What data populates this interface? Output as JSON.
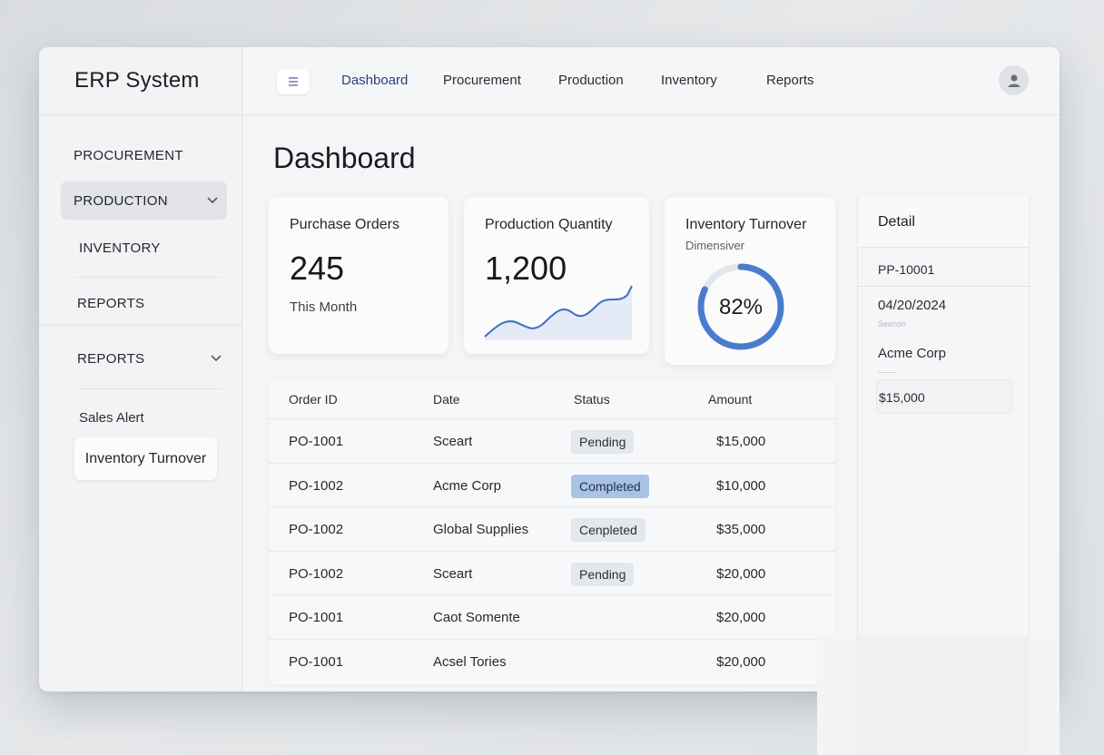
{
  "app": {
    "title": "ERP System"
  },
  "header": {
    "menu_icon": "hamburger-icon",
    "tabs": [
      {
        "label": "Dashboard",
        "active": true
      },
      {
        "label": "Procurement",
        "active": false
      },
      {
        "label": "Production",
        "active": false
      },
      {
        "label": "Inventory",
        "active": false
      },
      {
        "label": "Reports",
        "active": false
      }
    ],
    "avatar_icon": "user-icon"
  },
  "sidebar": {
    "items": [
      {
        "label": "PROCUREMENT"
      },
      {
        "label": "PRODUCTION",
        "active": true,
        "expanded": true
      },
      {
        "label": "INVENTORY"
      },
      {
        "label": "REPORTS"
      },
      {
        "label": "REPORTS",
        "expandable": true
      }
    ],
    "sub_label": "Sales Alert",
    "sub_card": "Inventory Turnover"
  },
  "main": {
    "page_title": "Dashboard",
    "cards": {
      "purchase": {
        "title": "Purchase Orders",
        "value": "245",
        "sub": "This Month"
      },
      "production": {
        "title": "Production Quantity",
        "value": "1,200"
      },
      "inventory": {
        "title": "Inventory Turnover",
        "sub": "Dimensiver",
        "percent_label": "82%",
        "percent": 82
      }
    },
    "table": {
      "headers": [
        "Order ID",
        "Date",
        "Status",
        "Amount"
      ],
      "rows": [
        {
          "id": "PO-1001",
          "date": "Sceart",
          "status": "Pending",
          "amount": "$15,000"
        },
        {
          "id": "PO-1002",
          "date": "Acme Corp",
          "status": "Completed",
          "amount": "$10,000"
        },
        {
          "id": "PO-1002",
          "date": "Global Supplies",
          "status": "Cenpleted",
          "amount": "$35,000"
        },
        {
          "id": "PO-1002",
          "date": "Sceart",
          "status": "Pending",
          "amount": "$20,000"
        },
        {
          "id": "PO-1001",
          "date": "Caot Somente",
          "status": "",
          "amount": "$20,000"
        },
        {
          "id": "PO-1001",
          "date": "Acsel Tories",
          "status": "",
          "amount": "$20,000"
        }
      ]
    }
  },
  "detail": {
    "title": "Detail",
    "order_id": "PP-10001",
    "date": "04/20/2024",
    "faint_label": "Seenon",
    "company": "Acme Corp",
    "amount": "$15,000"
  },
  "colors": {
    "accent": "#4a7ccd",
    "badge_blue": "#a9c2e6"
  }
}
